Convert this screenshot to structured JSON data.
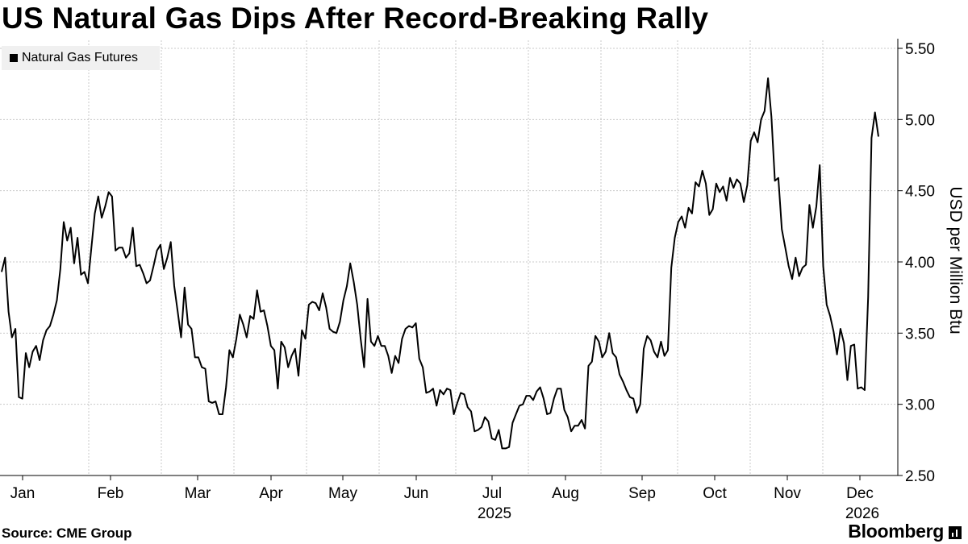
{
  "title": "US Natural Gas Dips After Record-Breaking Rally",
  "source": "Source: CME Group",
  "brand": "Bloomberg",
  "chart_data": {
    "type": "line",
    "title": "US Natural Gas Dips After Record-Breaking Rally",
    "ylabel": "USD per Million Btu",
    "xlabel": "",
    "ylim": [
      2.5,
      5.5
    ],
    "yticks": [
      2.5,
      3.0,
      3.5,
      4.0,
      4.5,
      5.0,
      5.5
    ],
    "ytick_labels": [
      "2.50",
      "3.00",
      "3.50",
      "4.00",
      "4.50",
      "5.00",
      "5.50"
    ],
    "x_month_labels": [
      "Jan",
      "Feb",
      "Mar",
      "Apr",
      "May",
      "Jun",
      "Jul",
      "Aug",
      "Sep",
      "Oct",
      "Nov",
      "Dec",
      "Jan"
    ],
    "x_year_labels": [
      {
        "label": "2025",
        "at_month": "Jul"
      },
      {
        "label": "2026",
        "at_month": "Jan"
      }
    ],
    "x_start_month": 0,
    "x_end_month": 12.52,
    "grid": true,
    "legend_position": "top-left",
    "series": [
      {
        "name": "Natural Gas Futures",
        "color": "#000000",
        "values": [
          3.93,
          4.03,
          3.65,
          3.47,
          3.53,
          3.05,
          3.04,
          3.36,
          3.26,
          3.37,
          3.41,
          3.31,
          3.45,
          3.52,
          3.55,
          3.63,
          3.73,
          3.95,
          4.28,
          4.15,
          4.24,
          3.99,
          4.17,
          3.91,
          3.93,
          3.85,
          4.1,
          4.34,
          4.46,
          4.31,
          4.39,
          4.49,
          4.46,
          4.08,
          4.1,
          4.1,
          4.03,
          4.06,
          4.24,
          3.97,
          3.98,
          3.92,
          3.85,
          3.87,
          3.97,
          4.08,
          4.12,
          3.95,
          4.03,
          4.14,
          3.83,
          3.65,
          3.47,
          3.82,
          3.56,
          3.53,
          3.33,
          3.33,
          3.26,
          3.25,
          3.02,
          3.01,
          3.02,
          2.93,
          2.93,
          3.12,
          3.38,
          3.33,
          3.46,
          3.63,
          3.56,
          3.47,
          3.62,
          3.6,
          3.8,
          3.65,
          3.66,
          3.55,
          3.41,
          3.38,
          3.11,
          3.44,
          3.4,
          3.26,
          3.34,
          3.39,
          3.2,
          3.52,
          3.46,
          3.7,
          3.72,
          3.71,
          3.66,
          3.78,
          3.68,
          3.53,
          3.51,
          3.5,
          3.58,
          3.73,
          3.83,
          3.99,
          3.86,
          3.7,
          3.46,
          3.26,
          3.74,
          3.44,
          3.41,
          3.48,
          3.41,
          3.41,
          3.34,
          3.22,
          3.34,
          3.29,
          3.46,
          3.53,
          3.55,
          3.54,
          3.57,
          3.32,
          3.26,
          3.08,
          3.09,
          3.11,
          2.99,
          3.1,
          3.07,
          3.11,
          3.1,
          2.93,
          3.01,
          3.08,
          3.07,
          2.98,
          2.95,
          2.81,
          2.82,
          2.84,
          2.91,
          2.88,
          2.76,
          2.75,
          2.82,
          2.69,
          2.69,
          2.7,
          2.87,
          2.93,
          2.99,
          3.0,
          3.06,
          3.06,
          3.03,
          3.09,
          3.12,
          3.04,
          2.93,
          2.94,
          3.04,
          3.11,
          3.11,
          2.96,
          2.91,
          2.81,
          2.85,
          2.85,
          2.89,
          2.83,
          3.27,
          3.3,
          3.48,
          3.44,
          3.33,
          3.37,
          3.5,
          3.36,
          3.33,
          3.21,
          3.16,
          3.1,
          3.05,
          3.04,
          2.94,
          3.0,
          3.39,
          3.48,
          3.45,
          3.37,
          3.33,
          3.44,
          3.34,
          3.38,
          3.96,
          4.17,
          4.28,
          4.32,
          4.24,
          4.38,
          4.34,
          4.56,
          4.53,
          4.64,
          4.55,
          4.33,
          4.37,
          4.55,
          4.49,
          4.53,
          4.43,
          4.59,
          4.52,
          4.58,
          4.55,
          4.42,
          4.54,
          4.85,
          4.91,
          4.84,
          5.0,
          5.06,
          5.29,
          5.02,
          4.57,
          4.59,
          4.23,
          4.1,
          3.97,
          3.88,
          4.03,
          3.9,
          3.96,
          3.98,
          4.4,
          4.24,
          4.39,
          4.68,
          3.97,
          3.7,
          3.62,
          3.51,
          3.35,
          3.53,
          3.43,
          3.17,
          3.41,
          3.42,
          3.11,
          3.12,
          3.1,
          3.75,
          4.87,
          5.05,
          4.88
        ]
      }
    ]
  }
}
